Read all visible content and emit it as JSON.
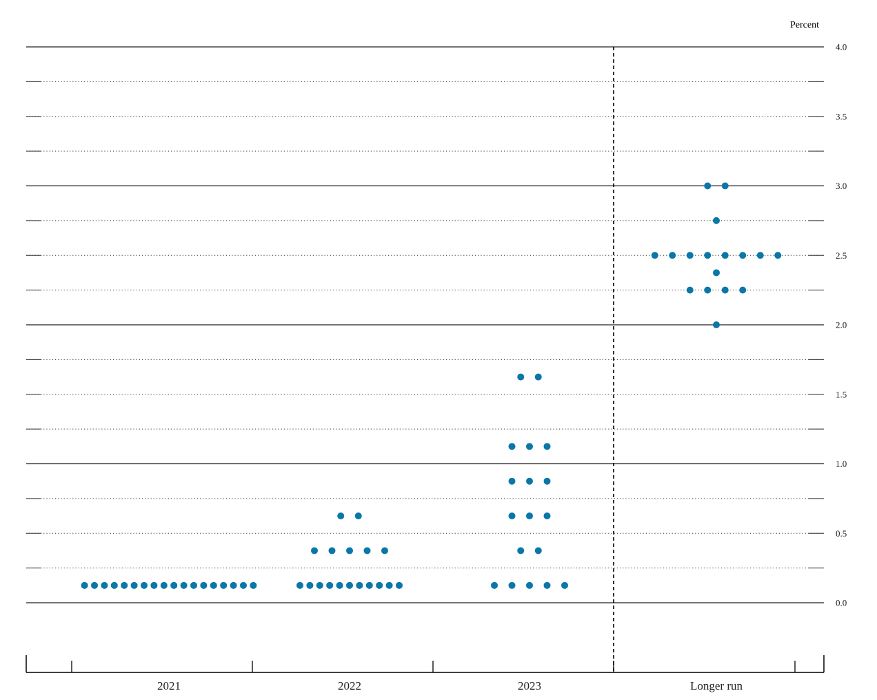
{
  "chart_data": {
    "type": "scatter",
    "title": "",
    "xlabel": "",
    "ylabel": "",
    "unit_label": "Percent",
    "ylim": [
      -0.375,
      4.0
    ],
    "y_ticks": [
      {
        "value": 4.0,
        "label": "4.0"
      },
      {
        "value": 3.5,
        "label": "3.5"
      },
      {
        "value": 3.0,
        "label": "3.0"
      },
      {
        "value": 2.5,
        "label": "2.5"
      },
      {
        "value": 2.0,
        "label": "2.0"
      },
      {
        "value": 1.5,
        "label": "1.5"
      },
      {
        "value": 1.0,
        "label": "1.0"
      },
      {
        "value": 0.5,
        "label": "0.5"
      },
      {
        "value": 0.0,
        "label": "0.0"
      }
    ],
    "solid_gridlines": [
      0.0,
      1.0,
      2.0,
      3.0,
      4.0
    ],
    "dotted_gridlines": [
      0.25,
      0.5,
      0.75,
      1.25,
      1.5,
      1.75,
      2.25,
      2.5,
      2.75,
      3.25,
      3.5,
      3.75
    ],
    "separator_before": "Longer run",
    "dot_color": "#0b77a8",
    "categories": [
      "2021",
      "2022",
      "2023",
      "Longer run"
    ],
    "groups": [
      {
        "category": "2021",
        "rows": [
          {
            "value": 0.125,
            "count": 18
          }
        ]
      },
      {
        "category": "2022",
        "rows": [
          {
            "value": 0.625,
            "count": 2
          },
          {
            "value": 0.375,
            "count": 5
          },
          {
            "value": 0.125,
            "count": 11
          }
        ]
      },
      {
        "category": "2023",
        "rows": [
          {
            "value": 1.625,
            "count": 2
          },
          {
            "value": 1.125,
            "count": 3
          },
          {
            "value": 0.875,
            "count": 3
          },
          {
            "value": 0.625,
            "count": 3
          },
          {
            "value": 0.375,
            "count": 2
          },
          {
            "value": 0.125,
            "count": 5
          }
        ]
      },
      {
        "category": "Longer run",
        "rows": [
          {
            "value": 3.0,
            "count": 2
          },
          {
            "value": 2.75,
            "count": 1
          },
          {
            "value": 2.5,
            "count": 8
          },
          {
            "value": 2.375,
            "count": 1
          },
          {
            "value": 2.25,
            "count": 4
          },
          {
            "value": 2.0,
            "count": 1
          }
        ]
      }
    ]
  }
}
